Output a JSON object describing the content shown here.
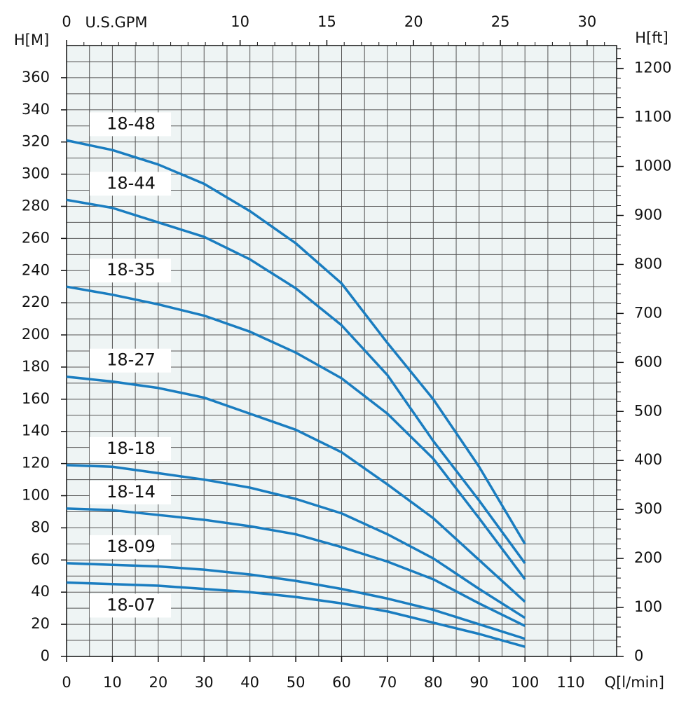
{
  "chart_data": {
    "type": "line",
    "x_label": "Q[l/min]",
    "y_label": "H[M]",
    "y2_label": "H[ft]",
    "x2_label": "U.S.GPM",
    "x": [
      0,
      10,
      20,
      30,
      40,
      50,
      60,
      70,
      80,
      90,
      100
    ],
    "series": [
      {
        "name": "18-48",
        "color": "#1a7dc0",
        "values": [
          321,
          315,
          306,
          294,
          277,
          257,
          232,
          195,
          160,
          118,
          70
        ]
      },
      {
        "name": "18-44",
        "color": "#1a7dc0",
        "values": [
          284,
          279,
          270,
          261,
          247,
          229,
          206,
          175,
          134,
          97,
          58
        ]
      },
      {
        "name": "18-35",
        "color": "#1a7dc0",
        "values": [
          230,
          225,
          219,
          212,
          202,
          189,
          173,
          151,
          123,
          86,
          48
        ]
      },
      {
        "name": "18-27",
        "color": "#1a7dc0",
        "values": [
          174,
          171,
          167,
          161,
          151,
          141,
          127,
          107,
          86,
          60,
          34
        ]
      },
      {
        "name": "18-18",
        "color": "#1a7dc0",
        "values": [
          119,
          118,
          114,
          110,
          105,
          98,
          89,
          76,
          61,
          42,
          24
        ]
      },
      {
        "name": "18-14",
        "color": "#1a7dc0",
        "values": [
          92,
          91,
          88,
          85,
          81,
          76,
          68,
          59,
          48,
          33,
          19
        ]
      },
      {
        "name": "18-09",
        "color": "#1a7dc0",
        "values": [
          58,
          57,
          56,
          54,
          51,
          47,
          42,
          36,
          29,
          20,
          11
        ]
      },
      {
        "name": "18-07",
        "color": "#1a7dc0",
        "values": [
          46,
          45,
          44,
          42,
          40,
          37,
          33,
          28,
          21,
          14,
          6
        ]
      }
    ],
    "xlim": [
      0,
      120
    ],
    "xticks": [
      0,
      10,
      20,
      30,
      40,
      50,
      60,
      70,
      80,
      90,
      100,
      110
    ],
    "ylim": [
      0,
      380
    ],
    "yticks": [
      0,
      20,
      40,
      60,
      80,
      100,
      120,
      140,
      160,
      180,
      200,
      220,
      240,
      260,
      280,
      300,
      320,
      340,
      360
    ],
    "x2lim": [
      0,
      31.7
    ],
    "x2ticks": [
      0,
      10,
      15,
      20,
      25,
      30
    ],
    "y2lim": [
      0,
      1246.7
    ],
    "y2ticks": [
      0,
      100,
      200,
      300,
      400,
      500,
      600,
      700,
      800,
      900,
      1000,
      1100,
      1200
    ],
    "grid": true
  }
}
